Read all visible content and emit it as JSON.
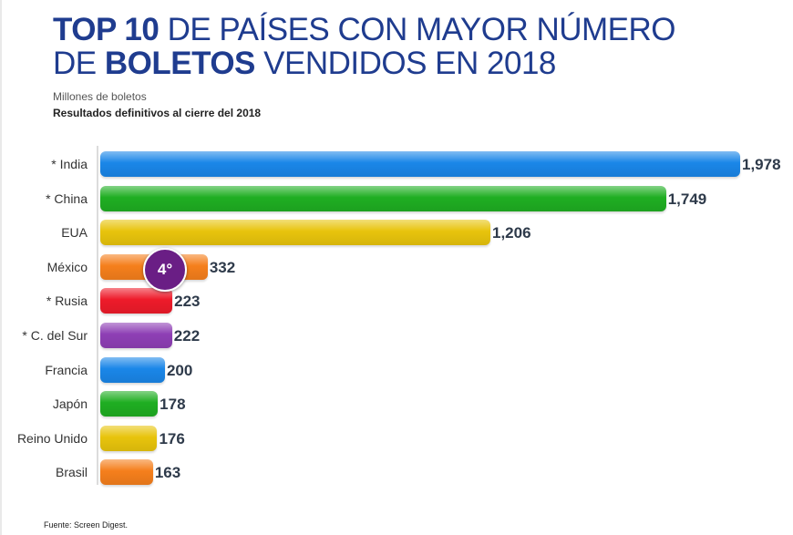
{
  "header": {
    "title_bold_1": "TOP 10",
    "title_1": " DE PAÍSES CON MAYOR NÚMERO",
    "title_2": "DE ",
    "title_bold_2": "BOLETOS",
    "title_3": " VENDIDOS EN 2018",
    "subtitle": "Millones de boletos",
    "subtitle2": "Resultados definitivos al cierre del 2018"
  },
  "badge": {
    "label": "4°"
  },
  "footer": {
    "source": "Fuente: Screen Digest."
  },
  "chart_data": {
    "type": "bar",
    "orientation": "horizontal",
    "categories": [
      "* India",
      "* China",
      "EUA",
      "México",
      "* Rusia",
      "* C. del Sur",
      "Francia",
      "Japón",
      "Reino Unido",
      "Brasil"
    ],
    "values": [
      1978,
      1749,
      1206,
      332,
      223,
      222,
      200,
      178,
      176,
      163
    ],
    "value_labels": [
      "1,978",
      "1,749",
      "1,206",
      "332",
      "223",
      "222",
      "200",
      "178",
      "176",
      "163"
    ],
    "colors": [
      "#1a86e8",
      "#1fae22",
      "#e8c40c",
      "#f57f1c",
      "#ee1b2a",
      "#8e3fb5",
      "#1a86e8",
      "#1fae22",
      "#e8c40c",
      "#f57f1c"
    ],
    "xlim": [
      0,
      1978
    ],
    "grid": false,
    "legend": "none"
  }
}
